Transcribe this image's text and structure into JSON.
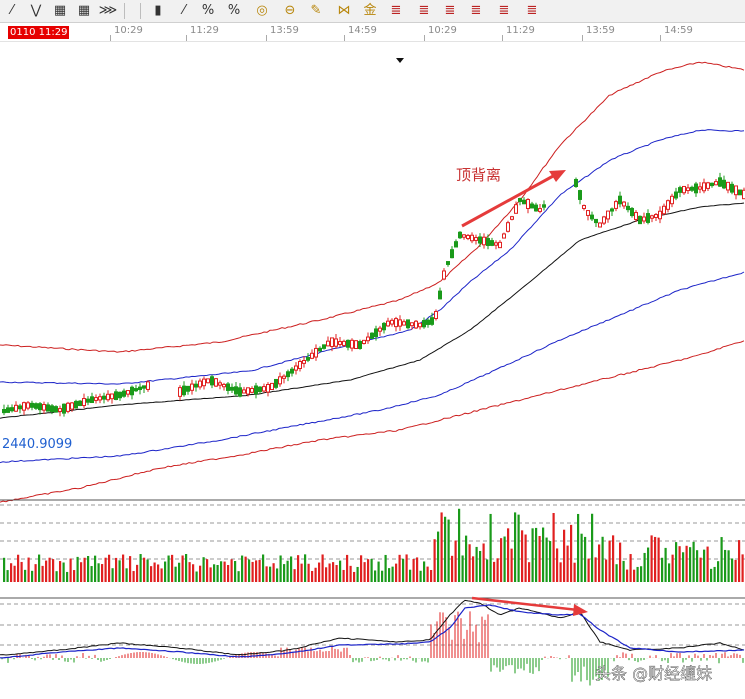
{
  "toolbar": {
    "icons": [
      "draw-line-icon",
      "trend-icon",
      "grid-icon",
      "grid-icon",
      "fan-icon",
      "candlestick-icon",
      "percent-slash-icon",
      "percent-icon",
      "percent-minus-icon",
      "gold-circle-icon",
      "gold-minus-icon",
      "pen-icon",
      "gauge-icon",
      "gold-icon",
      "pattern-icon",
      "pattern-icon",
      "pattern-icon",
      "pattern-icon",
      "pattern-icon",
      "pattern-icon"
    ],
    "glyphs": [
      "⁄",
      "⋁",
      "▦",
      "▦",
      "⋙",
      "▮",
      "⁄",
      "%",
      "%",
      "◎",
      "⊖",
      "✎",
      "⋈",
      "金",
      "≣",
      "≣",
      "≣",
      "≣",
      "≣",
      "≣"
    ]
  },
  "timebar": {
    "date_label": "0110 11:29",
    "times": [
      "10:29",
      "11:29",
      "13:59",
      "14:59",
      "10:29",
      "11:29",
      "13:59",
      "14:59"
    ]
  },
  "colors": {
    "up": "#e02020",
    "down": "#1a9a1a",
    "outer_band": "#cc1f1f",
    "mid_band": "#1c24c8",
    "midline": "#111111"
  },
  "chart_data": [
    {
      "type": "candlestick",
      "panel": "price",
      "label": "顶背离",
      "price_readout": "2440.9099",
      "bands": [
        "outer-upper",
        "inner-upper",
        "middle",
        "inner-lower",
        "outer-lower"
      ],
      "trend": "uptrend, sharp rise then top divergence"
    },
    {
      "type": "bar",
      "panel": "volume",
      "series": "volume bars (red up / green down)"
    },
    {
      "type": "line",
      "panel": "oscillator",
      "series": [
        "fast line",
        "slow line",
        "histogram"
      ],
      "note": "divergence arrow drawn at peak"
    }
  ],
  "watermark": "头条 @财经缠妹"
}
